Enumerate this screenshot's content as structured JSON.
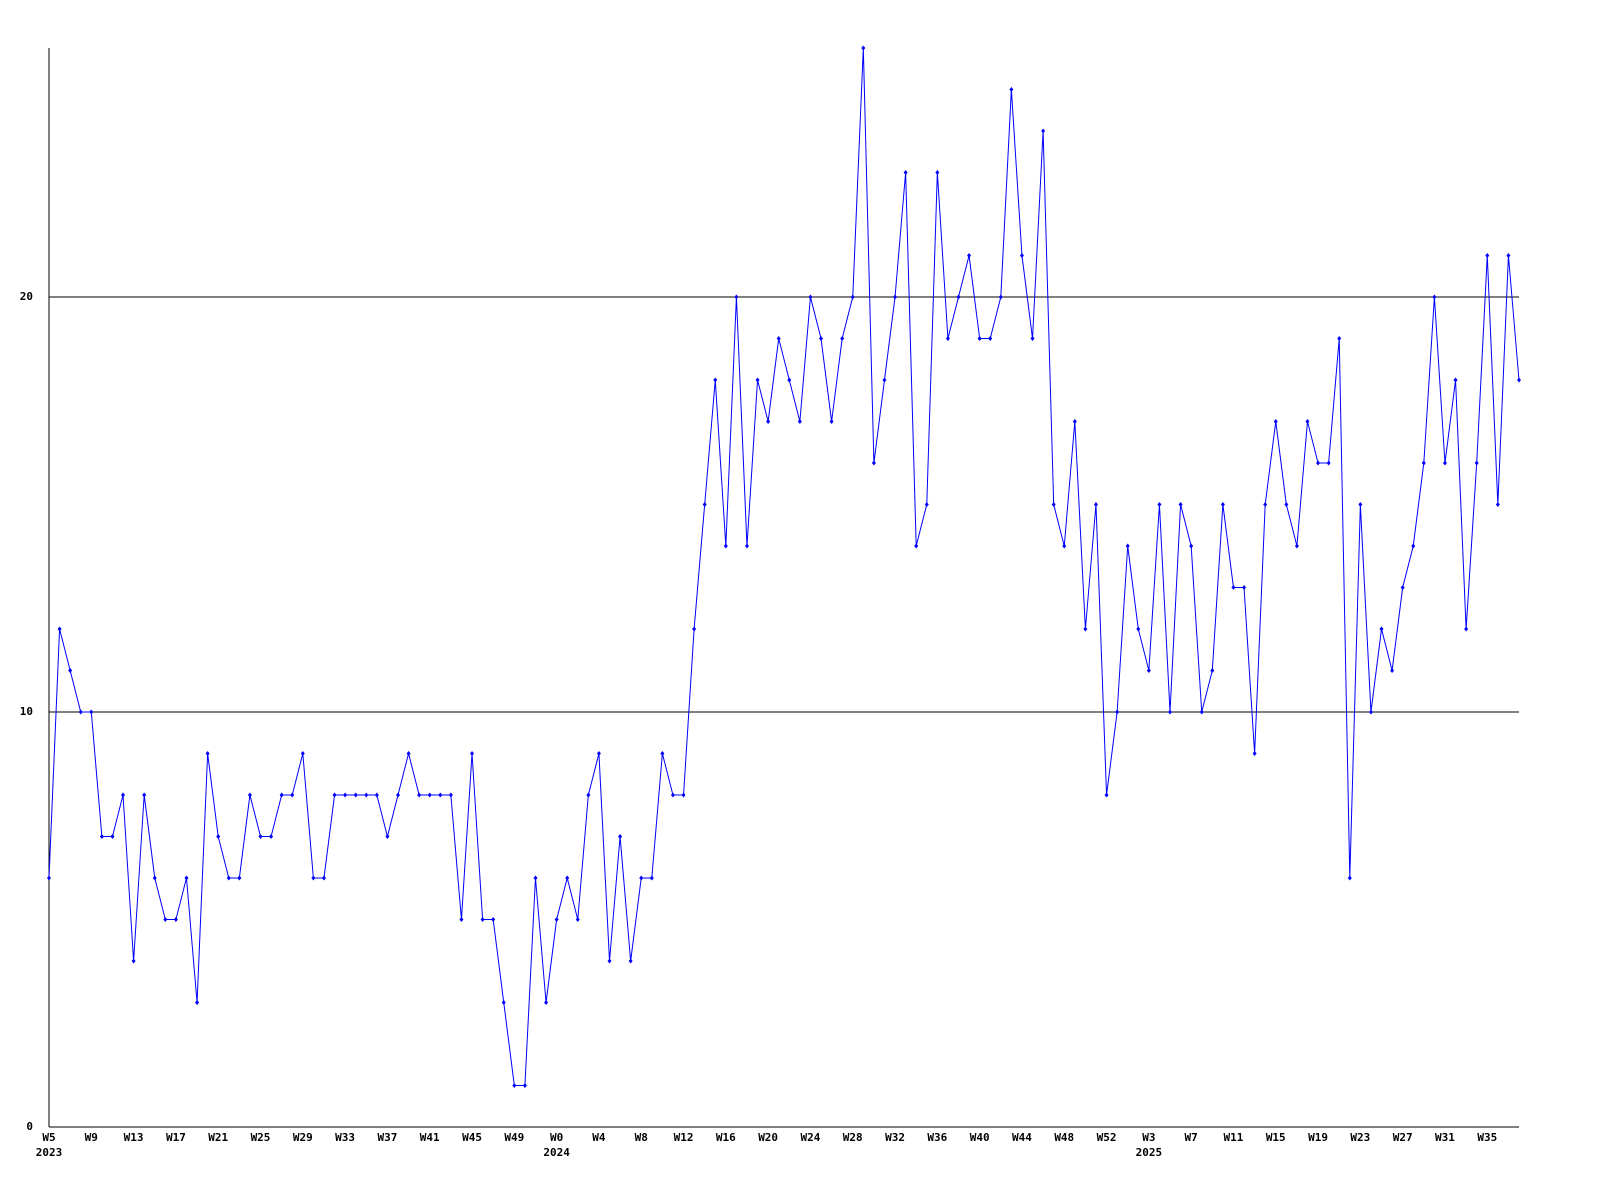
{
  "chart_data": {
    "type": "line",
    "categories": [
      "W5",
      null,
      null,
      null,
      "W9",
      null,
      null,
      null,
      "W13",
      null,
      null,
      null,
      "W17",
      null,
      null,
      null,
      "W21",
      null,
      null,
      null,
      "W25",
      null,
      null,
      null,
      "W29",
      null,
      null,
      null,
      "W33",
      null,
      null,
      null,
      "W37",
      null,
      null,
      null,
      "W41",
      null,
      null,
      null,
      "W45",
      null,
      null,
      null,
      "W49",
      null,
      null,
      null,
      "W0",
      null,
      null,
      null,
      "W4",
      null,
      null,
      null,
      "W8",
      null,
      null,
      null,
      "W12",
      null,
      null,
      null,
      "W16",
      null,
      null,
      null,
      "W20",
      null,
      null,
      null,
      "W24",
      null,
      null,
      null,
      "W28",
      null,
      null,
      null,
      "W32",
      null,
      null,
      null,
      "W36",
      null,
      null,
      null,
      "W40",
      null,
      null,
      null,
      "W44",
      null,
      null,
      null,
      "W48",
      null,
      null,
      null,
      "W52",
      null,
      null,
      null,
      "W3",
      null,
      null,
      null,
      "W7",
      null,
      null,
      null,
      "W11",
      null,
      null,
      null,
      "W15",
      null,
      null,
      null,
      "W19",
      null,
      null,
      null,
      "W23",
      null,
      null,
      null,
      "W27",
      null,
      null,
      null,
      "W31",
      null,
      null,
      null,
      "W35",
      null,
      null,
      null
    ],
    "years": [
      "2023",
      "2024",
      "2025"
    ],
    "values": [
      6,
      12,
      11,
      10,
      10,
      7,
      7,
      8,
      4,
      8,
      6,
      5,
      5,
      6,
      3,
      9,
      7,
      6,
      6,
      8,
      7,
      7,
      8,
      8,
      9,
      6,
      6,
      8,
      8,
      8,
      8,
      8,
      7,
      8,
      9,
      8,
      8,
      8,
      8,
      5,
      9,
      5,
      5,
      3,
      1,
      1,
      6,
      3,
      5,
      6,
      5,
      8,
      9,
      4,
      7,
      4,
      6,
      6,
      9,
      8,
      8,
      12,
      15,
      18,
      14,
      20,
      14,
      18,
      17,
      19,
      18,
      17,
      20,
      19,
      17,
      19,
      20,
      26,
      16,
      18,
      20,
      23,
      14,
      15,
      23,
      19,
      20,
      21,
      19,
      19,
      20,
      25,
      21,
      19,
      24,
      15,
      14,
      17,
      12,
      15,
      8,
      10,
      14,
      12,
      11,
      15,
      10,
      15,
      14,
      10,
      11,
      15,
      13,
      13,
      9,
      15,
      17,
      15,
      14,
      17,
      16,
      16,
      19,
      6,
      15,
      10,
      12,
      11,
      13,
      14,
      16,
      20,
      16,
      18,
      12,
      16,
      21,
      15,
      21,
      18
    ],
    "color": "#0000ff",
    "ylim": [
      0,
      26
    ],
    "yticks": [
      0,
      10,
      20
    ],
    "grid": true
  }
}
